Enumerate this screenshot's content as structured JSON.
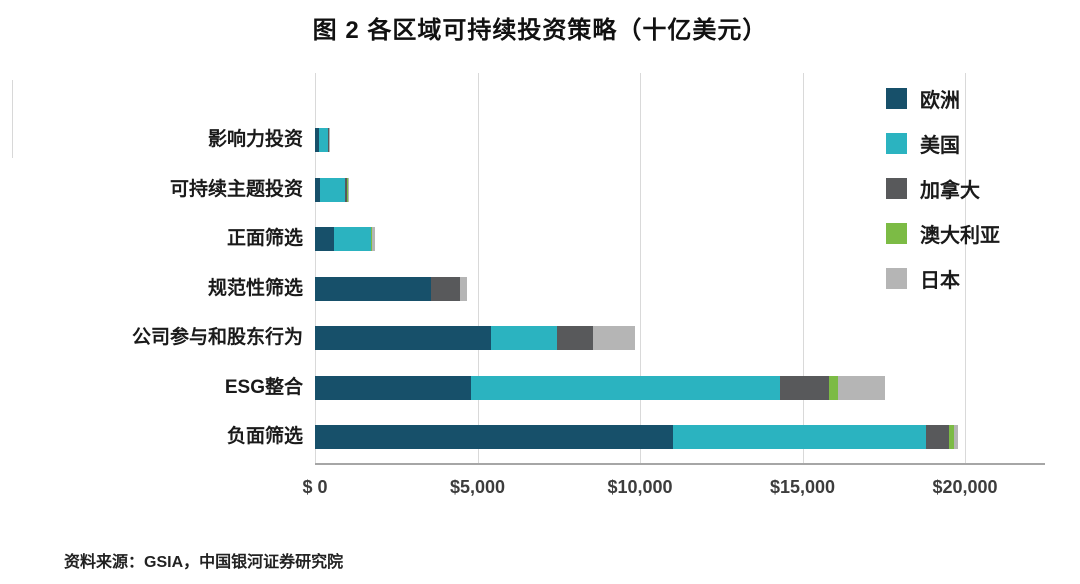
{
  "title": "图 2  各区域可持续投资策略（十亿美元）",
  "source": "资料来源：GSIA，中国银河证券研究院",
  "chart_data": {
    "type": "bar",
    "orientation": "horizontal",
    "stacked": true,
    "unit": "十亿美元",
    "grid": "vertical",
    "legend_position": "top-right",
    "categories": [
      "影响力投资",
      "可持续主题投资",
      "正面筛选",
      "规范性筛选",
      "公司参与和股东行为",
      "ESG整合",
      "负面筛选"
    ],
    "series": [
      {
        "name": "欧洲",
        "color": "#17506A",
        "values": [
          110,
          150,
          590,
          3560,
          5400,
          4800,
          11000
        ]
      },
      {
        "name": "美国",
        "color": "#2BB3C0",
        "values": [
          295,
          780,
          1120,
          0,
          2050,
          9500,
          7800
        ]
      },
      {
        "name": "加拿大",
        "color": "#58595B",
        "values": [
          15,
          55,
          15,
          900,
          1100,
          1500,
          700
        ]
      },
      {
        "name": "澳大利亚",
        "color": "#7CBB45",
        "values": [
          20,
          30,
          25,
          0,
          0,
          300,
          150
        ]
      },
      {
        "name": "日本",
        "color": "#B5B5B5",
        "values": [
          5,
          5,
          90,
          220,
          1290,
          1440,
          120
        ]
      }
    ],
    "x_ticks": [
      {
        "value": 0,
        "label": "$ 0"
      },
      {
        "value": 5000,
        "label": "$5,000"
      },
      {
        "value": 10000,
        "label": "$10,000"
      },
      {
        "value": 15000,
        "label": "$15,000"
      },
      {
        "value": 20000,
        "label": "$20,000"
      }
    ],
    "xlim": [
      0,
      22450
    ]
  }
}
